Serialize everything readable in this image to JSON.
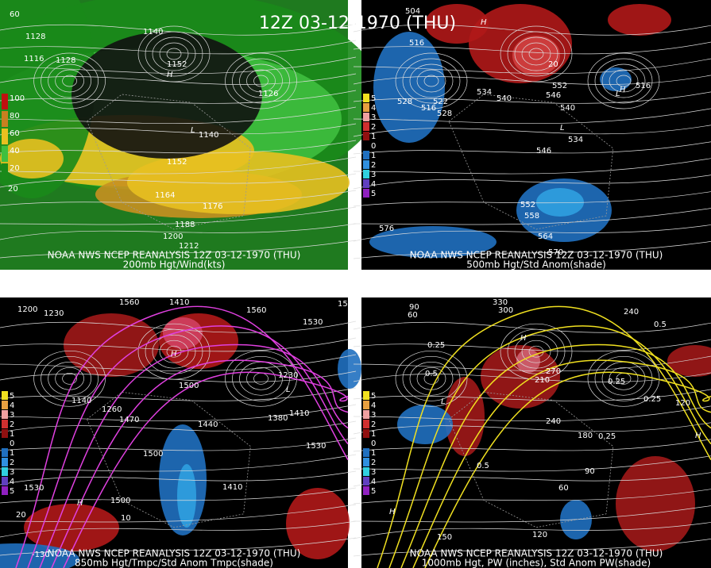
{
  "header": {
    "title": "12Z 03-12-1970 (THU)"
  },
  "panels": [
    {
      "line1": "NOAA NWS NCEP REANALYSIS 12Z 03-12-1970 (THU)",
      "line2": "200mb Hgt/Wind(kts)",
      "legend": [
        "100",
        "80",
        "60",
        "40",
        "20"
      ],
      "labels": [
        "60",
        "1128",
        "1116",
        "1128",
        "1140",
        "1152",
        "H",
        "L",
        "1140",
        "1152",
        "1164",
        "1176",
        "1188",
        "1200",
        "1212",
        "20",
        "1126"
      ]
    },
    {
      "line1": "NOAA NWS NCEP REANALYSIS 12Z 03-12-1970 (THU)",
      "line2": "500mb Hgt/Std Anom(shade)",
      "legend": [
        "5",
        "4",
        "3",
        "2",
        "1",
        "0",
        "1",
        "2",
        "3",
        "4",
        "5"
      ],
      "labels": [
        "504",
        "516",
        "528",
        "516",
        "522",
        "528",
        "534",
        "540",
        "H",
        "552",
        "546",
        "540",
        "L",
        "534",
        "546",
        "552",
        "558",
        "564",
        "570",
        "576",
        "20",
        "H",
        "L",
        "516"
      ]
    },
    {
      "line1": "NOAA NWS NCEP REANALYSIS 12Z 03-12-1970 (THU)",
      "line2": "850mb Hgt/Tmpc/Std Anom Tmpc(shade)",
      "legend": [
        "5",
        "4",
        "3",
        "2",
        "1",
        "0",
        "1",
        "2",
        "3",
        "4",
        "5"
      ],
      "labels": [
        "1200",
        "1230",
        "1560",
        "1410",
        "1560",
        "1530",
        "1590",
        "H",
        "1500",
        "1140",
        "1260",
        "1470",
        "1440",
        "1500",
        "1380",
        "1410",
        "1530",
        "1530",
        "1500",
        "1410",
        "H",
        "20",
        "10",
        "-130",
        "L",
        "1230"
      ]
    },
    {
      "line1": "NOAA NWS NCEP REANALYSIS 12Z 03-12-1970 (THU)",
      "line2": "1000mb Hgt, PW (inches), Std Anom PW(shade)",
      "legend": [
        "5",
        "4",
        "3",
        "2",
        "1",
        "0",
        "1",
        "2",
        "3",
        "4",
        "5"
      ],
      "labels": [
        "90",
        "60",
        "330",
        "300",
        "240",
        "0.25",
        "0.5",
        "270",
        "210",
        "H",
        "L",
        "0.25",
        "0.25",
        "0.5",
        "240",
        "180",
        "120",
        "90",
        "60",
        "0.25",
        "150",
        "120",
        "0.5",
        "H",
        "H"
      ]
    }
  ]
}
